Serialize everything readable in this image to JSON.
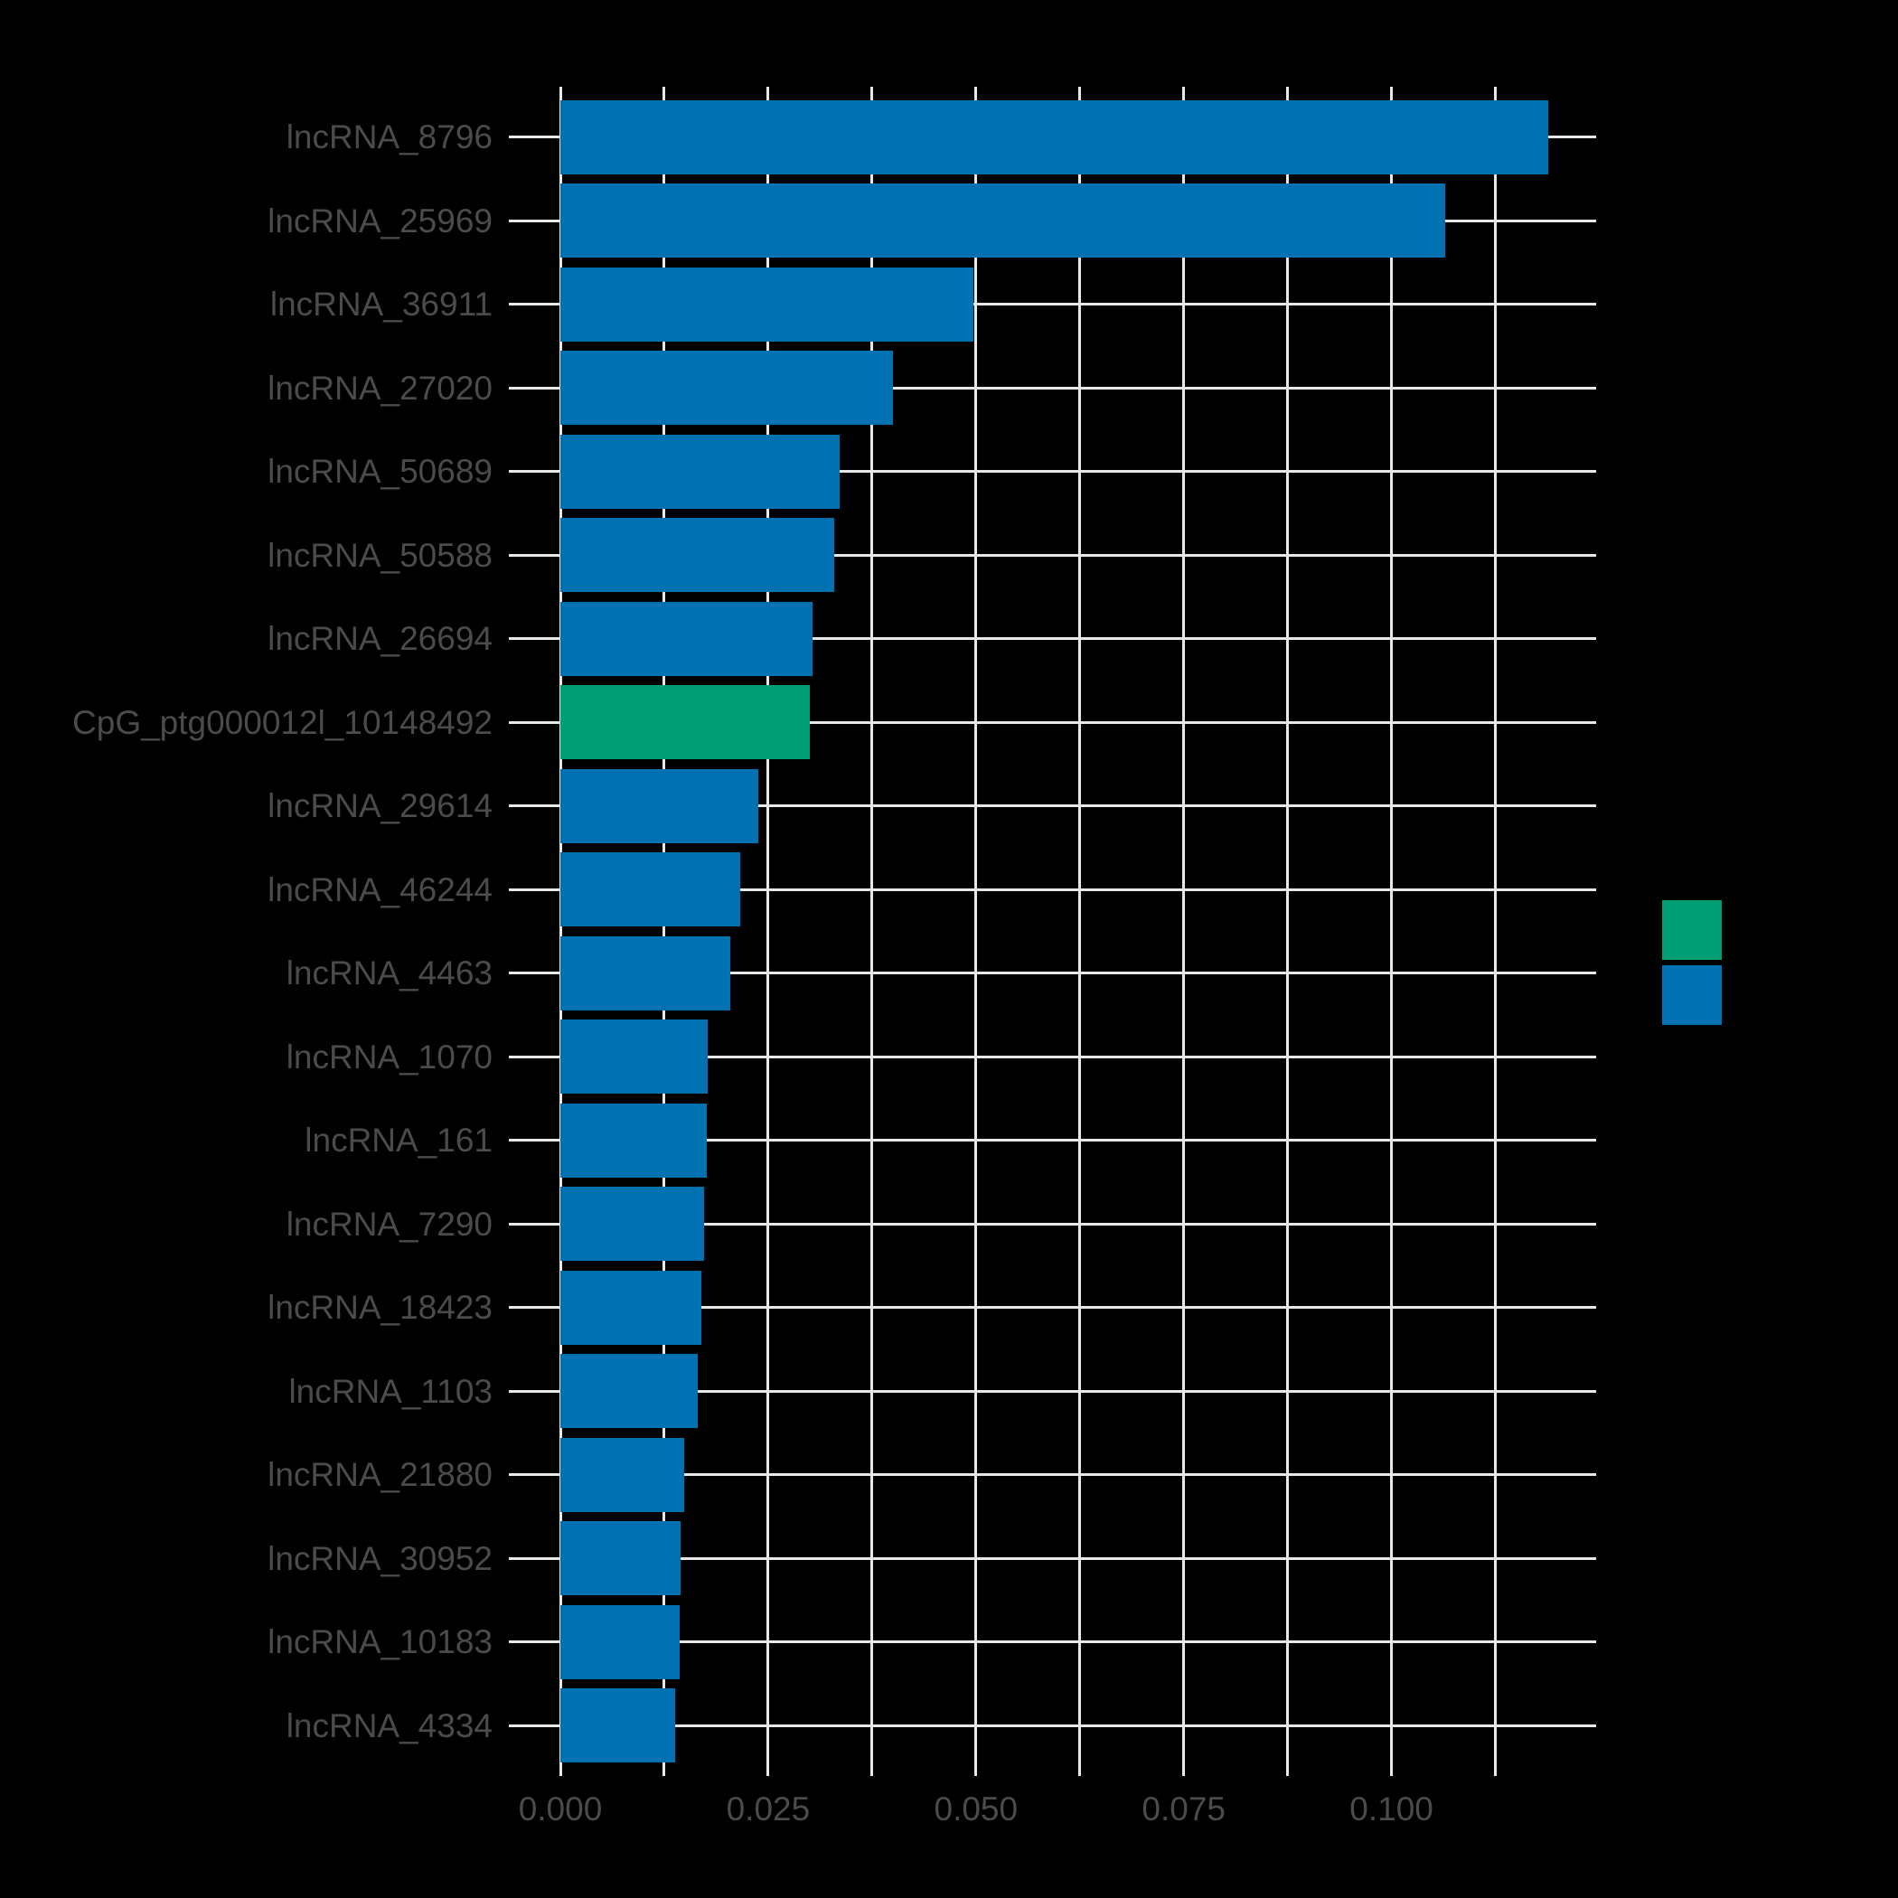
{
  "figure": {
    "background_color": "#000000",
    "text_color": "#4b4b4b",
    "grid_color": "#e8e8e8"
  },
  "chart_data": {
    "type": "bar",
    "orientation": "horizontal",
    "title": "",
    "xlabel": "",
    "ylabel": "",
    "categories": [
      "lncRNA_8796",
      "lncRNA_25969",
      "lncRNA_36911",
      "lncRNA_27020",
      "lncRNA_50689",
      "lncRNA_50588",
      "lncRNA_26694",
      "CpG_ptg000012l_10148492",
      "lncRNA_29614",
      "lncRNA_46244",
      "lncRNA_4463",
      "lncRNA_1070",
      "lncRNA_161",
      "lncRNA_7290",
      "lncRNA_18423",
      "lncRNA_1103",
      "lncRNA_21880",
      "lncRNA_30952",
      "lncRNA_10183",
      "lncRNA_4334"
    ],
    "values": [
      0.1189,
      0.1065,
      0.0497,
      0.04,
      0.0336,
      0.033,
      0.0303,
      0.03,
      0.0238,
      0.0216,
      0.0204,
      0.0177,
      0.0176,
      0.0173,
      0.017,
      0.0165,
      0.0149,
      0.0145,
      0.0143,
      0.0138
    ],
    "bar_colors": [
      "#0072B2",
      "#0072B2",
      "#0072B2",
      "#0072B2",
      "#0072B2",
      "#0072B2",
      "#0072B2",
      "#009E73",
      "#0072B2",
      "#0072B2",
      "#0072B2",
      "#0072B2",
      "#0072B2",
      "#0072B2",
      "#0072B2",
      "#0072B2",
      "#0072B2",
      "#0072B2",
      "#0072B2",
      "#0072B2"
    ],
    "xlim": [
      0,
      0.1246
    ],
    "x_tick_values": [
      0.0,
      0.025,
      0.05,
      0.075,
      0.1
    ],
    "x_tick_labels": [
      "0.000",
      "0.025",
      "0.050",
      "0.075",
      "0.100"
    ],
    "minor_grid_step": 0.0125,
    "grid": true,
    "legend": {
      "position": "right",
      "entries": [
        {
          "color": "#009E73",
          "label": ""
        },
        {
          "color": "#0072B2",
          "label": ""
        }
      ]
    }
  }
}
